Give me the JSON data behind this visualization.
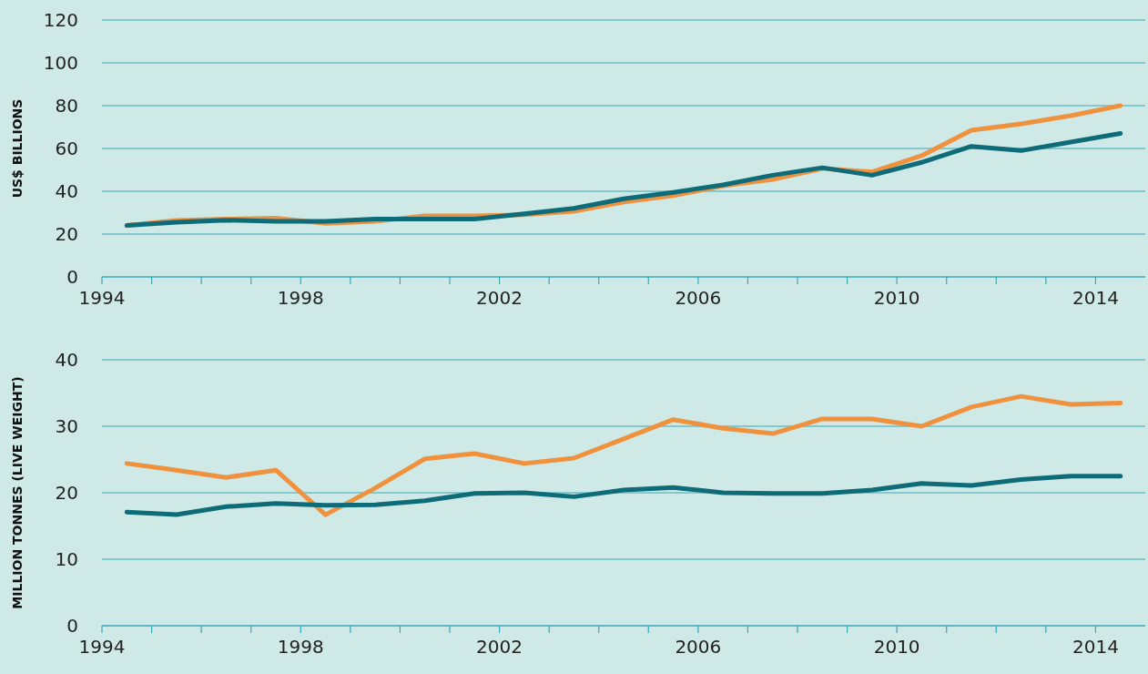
{
  "chart_data": [
    {
      "type": "line",
      "ylabel": "US$ BILLIONS",
      "x": [
        1994.5,
        1995.5,
        1996.5,
        1997.5,
        1998.5,
        1999.5,
        2000.5,
        2001.5,
        2002.5,
        2003.5,
        2004.5,
        2005.5,
        2006.5,
        2007.5,
        2008.5,
        2009.5,
        2010.5,
        2011.5,
        2012.5,
        2013.5,
        2014.5
      ],
      "series": [
        {
          "color": "#f0913e",
          "values": [
            24,
            26.4,
            27,
            27.5,
            25,
            26,
            28.5,
            28.5,
            29,
            30.6,
            35,
            38,
            42.5,
            45.5,
            50.6,
            49,
            56.6,
            68.5,
            71.5,
            75.3,
            80
          ]
        },
        {
          "color": "#0e6b78",
          "values": [
            24,
            25.5,
            26.5,
            26,
            26,
            27,
            27,
            27,
            29.5,
            32,
            36.5,
            39.5,
            43,
            47.5,
            51,
            47.5,
            53.5,
            61,
            59,
            63,
            67
          ]
        }
      ],
      "xlim": [
        1994,
        2015
      ],
      "xticks": [
        1994,
        {
          "value": 1995,
          "label": null
        },
        {
          "value": 1996,
          "label": null
        },
        {
          "value": 1997,
          "label": null
        },
        1998,
        {
          "value": 1999,
          "label": null
        },
        {
          "value": 2000,
          "label": null
        },
        {
          "value": 2001,
          "label": null
        },
        2002,
        {
          "value": 2003,
          "label": null
        },
        {
          "value": 2004,
          "label": null
        },
        {
          "value": 2005,
          "label": null
        },
        2006,
        {
          "value": 2007,
          "label": null
        },
        {
          "value": 2008,
          "label": null
        },
        {
          "value": 2009,
          "label": null
        },
        2010,
        {
          "value": 2011,
          "label": null
        },
        {
          "value": 2012,
          "label": null
        },
        {
          "value": 2013,
          "label": null
        },
        2014
      ],
      "ylim": [
        0,
        120
      ],
      "yticks": [
        0,
        20,
        40,
        60,
        80,
        100,
        120
      ],
      "grid": "y"
    },
    {
      "type": "line",
      "ylabel": "MILLION TONNES (LIVE WEIGHT)",
      "x": [
        1994.5,
        1995.5,
        1996.5,
        1997.5,
        1998.5,
        1999.5,
        2000.5,
        2001.5,
        2002.5,
        2003.5,
        2004.5,
        2005.5,
        2006.5,
        2007.5,
        2008.5,
        2009.5,
        2010.5,
        2011.5,
        2012.5,
        2013.5,
        2014.5
      ],
      "series": [
        {
          "color": "#f0913e",
          "values": [
            24.4,
            23.4,
            22.3,
            23.4,
            16.7,
            20.7,
            25.1,
            25.9,
            24.4,
            25.2,
            28.1,
            31,
            29.7,
            28.9,
            31.1,
            31.1,
            30,
            32.9,
            34.5,
            33.3,
            33.5
          ]
        },
        {
          "color": "#0e6b78",
          "values": [
            17.1,
            16.7,
            17.9,
            18.4,
            18.1,
            18.2,
            18.8,
            19.9,
            20,
            19.4,
            20.4,
            20.8,
            20,
            19.9,
            19.9,
            20.4,
            21.4,
            21.1,
            22,
            22.5,
            22.5
          ]
        }
      ],
      "xlim": [
        1994,
        2015
      ],
      "xticks": [
        1994,
        {
          "value": 1995,
          "label": null
        },
        {
          "value": 1996,
          "label": null
        },
        {
          "value": 1997,
          "label": null
        },
        1998,
        {
          "value": 1999,
          "label": null
        },
        {
          "value": 2000,
          "label": null
        },
        {
          "value": 2001,
          "label": null
        },
        2002,
        {
          "value": 2003,
          "label": null
        },
        {
          "value": 2004,
          "label": null
        },
        {
          "value": 2005,
          "label": null
        },
        2006,
        {
          "value": 2007,
          "label": null
        },
        {
          "value": 2008,
          "label": null
        },
        {
          "value": 2009,
          "label": null
        },
        2010,
        {
          "value": 2011,
          "label": null
        },
        {
          "value": 2012,
          "label": null
        },
        {
          "value": 2013,
          "label": null
        },
        2014
      ],
      "ylim": [
        0,
        40
      ],
      "yticks": [
        0,
        10,
        20,
        30,
        40
      ],
      "grid": "y"
    }
  ]
}
